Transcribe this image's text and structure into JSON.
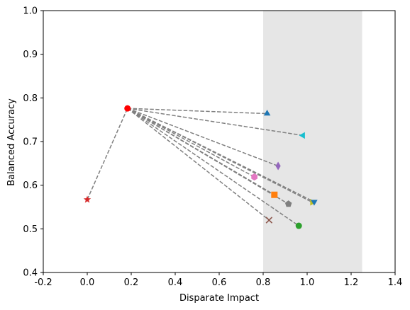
{
  "chart_data": {
    "type": "scatter",
    "xlabel": "Disparate Impact",
    "ylabel": "Balanced Accuracy",
    "xlim": [
      -0.2,
      1.4
    ],
    "ylim": [
      0.4,
      1.0
    ],
    "xticks": [
      "-0.2",
      "0.0",
      "0.2",
      "0.4",
      "0.6",
      "0.8",
      "1.0",
      "1.2",
      "1.4"
    ],
    "yticks": [
      "0.4",
      "0.5",
      "0.6",
      "0.7",
      "0.8",
      "0.9",
      "1.0"
    ],
    "grid": false,
    "shaded_band": {
      "x_range": [
        0.8,
        1.25
      ],
      "color": "#e6e6e6"
    },
    "connector_style": {
      "color": "#808080",
      "dash": "dashed"
    },
    "start_point": {
      "x": 0.0,
      "y": 0.567,
      "marker": "star",
      "color": "#d62728"
    },
    "hub_point": {
      "x": 0.183,
      "y": 0.776,
      "marker": "circle",
      "color": "#ff0000"
    },
    "points": [
      {
        "x": 0.818,
        "y": 0.764,
        "marker": "triangle-up",
        "color": "#1f77b4"
      },
      {
        "x": 0.981,
        "y": 0.714,
        "marker": "triangle-left",
        "color": "#17becf"
      },
      {
        "x": 0.868,
        "y": 0.644,
        "marker": "diamond",
        "color": "#9467bd"
      },
      {
        "x": 0.76,
        "y": 0.619,
        "marker": "hexagon",
        "color": "#e377c2"
      },
      {
        "x": 0.851,
        "y": 0.578,
        "marker": "square",
        "color": "#ff7f0e"
      },
      {
        "x": 1.023,
        "y": 0.561,
        "marker": "triangle-right",
        "color": "#bcbd22"
      },
      {
        "x": 1.032,
        "y": 0.562,
        "marker": "triangle-down",
        "color": "#1f77b4"
      },
      {
        "x": 0.915,
        "y": 0.557,
        "marker": "pentagon",
        "color": "#7f7f7f"
      },
      {
        "x": 0.827,
        "y": 0.52,
        "marker": "x",
        "color": "#8c564b"
      },
      {
        "x": 0.962,
        "y": 0.507,
        "marker": "circle",
        "color": "#2ca02c"
      }
    ]
  }
}
